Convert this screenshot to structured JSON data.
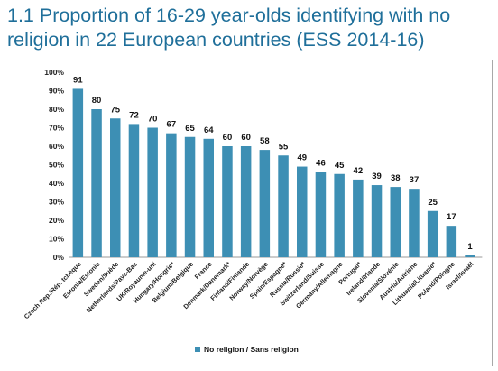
{
  "header": {
    "title": "1.1  Proportion of 16-29 year-olds identifying with no religion in 22 European countries (ESS 2014-16)"
  },
  "chart_data": {
    "type": "bar",
    "categories": [
      "Czech Rep./Rép. tchèque",
      "Estonia/Estonie",
      "Sweden/Suède",
      "Netherlands/Pays-Bas",
      "UK/Royaume-uni",
      "Hungary/Hongrie*",
      "Belgium/Belgique",
      "France",
      "Denmark/Danemark*",
      "Finland/Finlande",
      "Norway/Norvège",
      "Spain/Espagne*",
      "Russia/Russie*",
      "Switzerland/Suisse",
      "Germany/Allemagne",
      "Portugal*",
      "Ireland/Irlande",
      "Slovenia/Slovénie",
      "Austria/Autriche",
      "Lithuania/Lituanie*",
      "Poland/Pologne",
      "Israel/Israël"
    ],
    "series": [
      {
        "name": "No religion / Sans religion",
        "values": [
          91,
          80,
          75,
          72,
          70,
          67,
          65,
          64,
          60,
          60,
          58,
          55,
          49,
          46,
          45,
          42,
          39,
          38,
          37,
          25,
          17,
          1
        ]
      }
    ],
    "data_labels": [
      "91",
      "80",
      "75",
      "72",
      "70",
      "67",
      "65",
      "64",
      "60",
      "60",
      "58",
      "55",
      "49",
      "46",
      "45",
      "42",
      "39",
      "38",
      "37",
      "25",
      "17",
      "1"
    ],
    "y_ticks": [
      "0%",
      "10%",
      "20%",
      "30%",
      "40%",
      "50%",
      "60%",
      "70%",
      "80%",
      "90%",
      "100%"
    ],
    "ylim": [
      0,
      100
    ],
    "grid": false,
    "legend_position": "bottom",
    "bar_color": "#3d8fb4"
  }
}
